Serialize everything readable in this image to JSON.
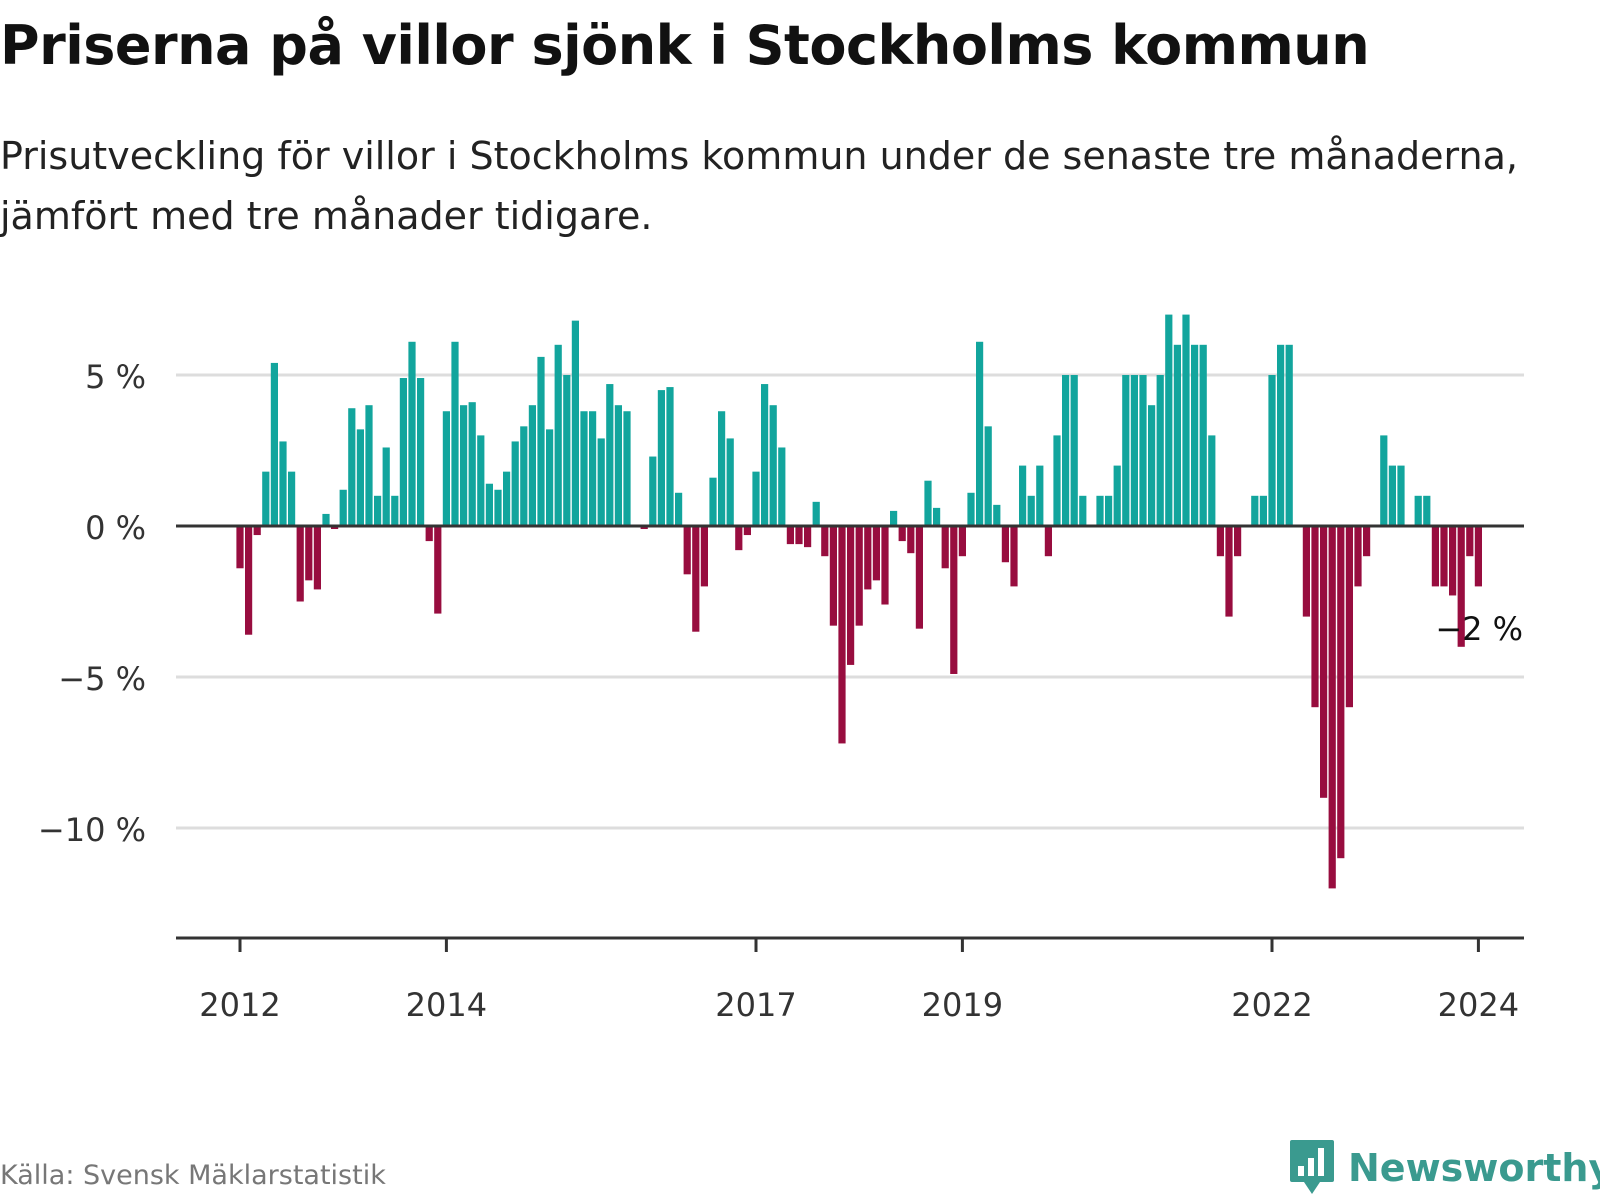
{
  "title": "Priserna på villor sjönk i Stockholms kommun",
  "subtitle": "Prisutveckling för villor i Stockholms kommun under de senaste tre månaderna, jämfört med tre månader tidigare.",
  "source": "Källa: Svensk Mäklarstatistik",
  "brand": "Newsworthy",
  "colors": {
    "positive": "#12a59d",
    "negative": "#980d3f",
    "grid": "#dddddd",
    "axis": "#333333",
    "brand": "#3a9a8f"
  },
  "chart_data": {
    "type": "bar",
    "title": "Priserna på villor sjönk i Stockholms kommun",
    "xlabel": "",
    "ylabel": "",
    "unit": "%",
    "ylim": [
      -13.7,
      7.3
    ],
    "yticks": [
      {
        "value": 5,
        "label": "5 %"
      },
      {
        "value": 0,
        "label": "0 %"
      },
      {
        "value": -5,
        "label": "−5 %"
      },
      {
        "value": -10,
        "label": "−10 %"
      }
    ],
    "xticks": [
      {
        "index": 0,
        "label": "2012"
      },
      {
        "index": 24,
        "label": "2014"
      },
      {
        "index": 60,
        "label": "2017"
      },
      {
        "index": 84,
        "label": "2019"
      },
      {
        "index": 120,
        "label": "2022"
      },
      {
        "index": 144,
        "label": "2024"
      }
    ],
    "start": "2012-01",
    "annotation": {
      "index": 142,
      "label": "−2 %"
    },
    "values": [
      -1.4,
      -3.6,
      -0.3,
      1.8,
      5.4,
      2.8,
      1.8,
      -2.5,
      -1.8,
      -2.1,
      0.4,
      -0.1,
      1.2,
      3.9,
      3.2,
      4.0,
      1.0,
      2.6,
      1.0,
      4.9,
      6.1,
      4.9,
      -0.5,
      -2.9,
      3.8,
      6.1,
      4.0,
      4.1,
      3.0,
      1.4,
      1.2,
      1.8,
      2.8,
      3.3,
      4.0,
      5.6,
      3.2,
      6.0,
      5.0,
      6.8,
      3.8,
      3.8,
      2.9,
      4.7,
      4.0,
      3.8,
      0.0,
      -0.1,
      2.3,
      4.5,
      4.6,
      1.1,
      -1.6,
      -3.5,
      -2.0,
      1.6,
      3.8,
      2.9,
      -0.8,
      -0.3,
      1.8,
      4.7,
      4.0,
      2.6,
      -0.6,
      -0.6,
      -0.7,
      0.8,
      -1.0,
      -3.3,
      -7.2,
      -4.6,
      -3.3,
      -2.1,
      -1.8,
      -2.6,
      0.5,
      -0.5,
      -0.9,
      -3.4,
      1.5,
      0.6,
      -1.4,
      -4.9,
      -1.0,
      1.1,
      6.1,
      3.3,
      0.7,
      -1.2,
      -2.0,
      2.0,
      1.0,
      2.0,
      -1.0,
      3.0,
      5.0,
      5.0,
      1.0,
      0.0,
      1.0,
      1.0,
      2.0,
      5.0,
      5.0,
      5.0,
      4.0,
      5.0,
      7.0,
      6.0,
      7.0,
      6.0,
      6.0,
      3.0,
      -1.0,
      -3.0,
      -1.0,
      0.0,
      1.0,
      1.0,
      5.0,
      6.0,
      6.0,
      0.0,
      -3.0,
      -6.0,
      -9.0,
      -12.0,
      -11.0,
      -6.0,
      -2.0,
      -1.0,
      0.0,
      3.0,
      2.0,
      2.0,
      0.0,
      1.0,
      1.0,
      -2.0,
      -2.0,
      -2.3,
      -4.0,
      -1.0,
      -2.0
    ]
  }
}
